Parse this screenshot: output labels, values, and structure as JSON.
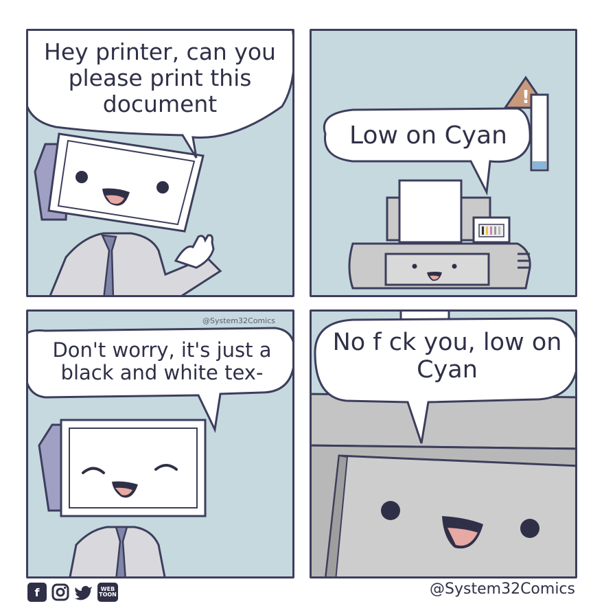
{
  "comic": {
    "panel1": {
      "speech": "Hey printer, can you please print this document"
    },
    "panel2": {
      "speech": "Low on Cyan"
    },
    "panel3": {
      "speech": "Don't worry, it's just a black and white tex-",
      "watermark": "@System32Comics"
    },
    "panel4": {
      "speech": "No f ck you, low on Cyan"
    }
  },
  "footer": {
    "handle": "@System32Comics",
    "social_icons": [
      "facebook-icon",
      "instagram-icon",
      "twitter-icon",
      "webtoon-icon"
    ],
    "webtoon_label": "WEB TOON"
  },
  "colors": {
    "background": "#c5d9df",
    "outline": "#3d3e5c",
    "body_gray": "#c8c8c8",
    "warning": "#c9997b"
  }
}
